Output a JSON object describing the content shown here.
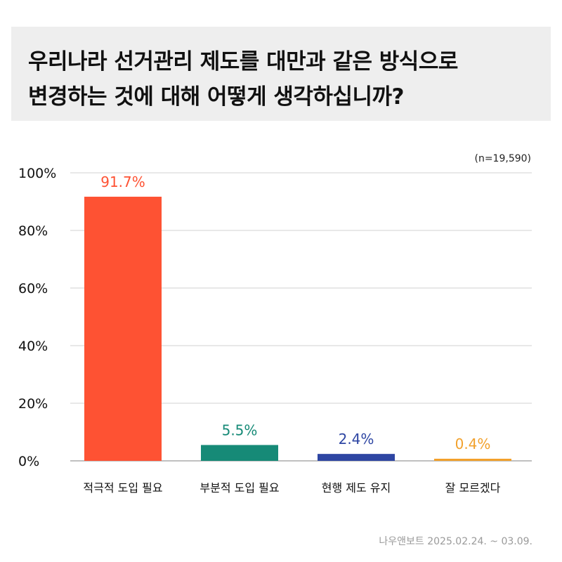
{
  "title": {
    "line1": "우리나라 선거관리 제도를 대만과 같은 방식으로",
    "line2": "변경하는 것에 대해 어떻게 생각하십니까?"
  },
  "sample_size": "(n=19,590)",
  "source": "나우앤보트 2025.02.24. ~ 03.09.",
  "chart_data": {
    "type": "bar",
    "categories": [
      "적극적 도입 필요",
      "부분적 도입 필요",
      "현행 제도 유지",
      "잘 모르겠다"
    ],
    "values": [
      91.7,
      5.5,
      2.4,
      0.4
    ],
    "value_labels": [
      "91.7%",
      "5.5%",
      "2.4%",
      "0.4%"
    ],
    "colors": [
      "#fe5233",
      "#168a77",
      "#2e46a3",
      "#f2a12c"
    ],
    "yticks": [
      "0%",
      "20%",
      "40%",
      "60%",
      "80%",
      "100%"
    ],
    "ylim": [
      0,
      100
    ],
    "grid": true
  }
}
